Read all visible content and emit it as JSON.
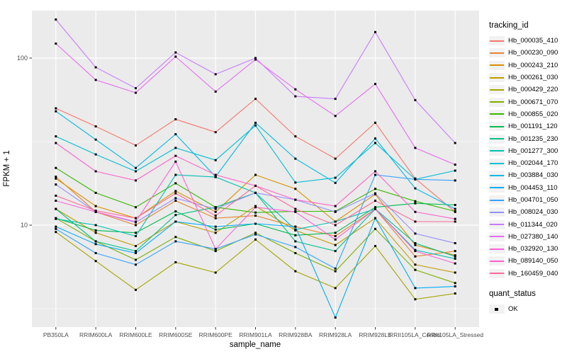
{
  "figure": {
    "panel_background": "#EBEBEB",
    "grid_color": "#FFFFFF",
    "tick_color": "#333333",
    "axis_text_color": "#4D4D4D",
    "point_color": "#000000"
  },
  "axes": {
    "x_title": "sample_name",
    "y_title": "FPKM + 1",
    "y_scale": "log10",
    "y_major_breaks": [
      10,
      100
    ],
    "y_minor_breaks": [
      3.1623,
      31.623
    ],
    "y_tick_labels": [
      "10",
      "100"
    ]
  },
  "legend": {
    "tracking_title": "tracking_id",
    "quant_title": "quant_status",
    "quant_item": "OK"
  },
  "chart_data": {
    "type": "line",
    "title": "",
    "xlabel": "sample_name",
    "ylabel": "FPKM + 1",
    "y_axis": "log10",
    "ylim": [
      2.5,
      190
    ],
    "grid": true,
    "legend_position": "right",
    "marker": "black-square",
    "quant_status_all_points": "OK",
    "categories": [
      "PB350LA",
      "RRIM600LA",
      "RRIM600LE",
      "RRIM600SE",
      "RRIM600PE",
      "RRIM901LA",
      "RRIM928BA",
      "RRIM928LA",
      "RRIM928LE",
      "RRII105LA_Control",
      "RRII105LA_Stressed"
    ],
    "series": [
      {
        "name": "Hb_000035_410",
        "color": "#F8766D",
        "values": [
          50,
          39,
          30,
          43,
          36,
          57,
          34,
          25,
          41,
          19,
          12
        ]
      },
      {
        "name": "Hb_000230_090",
        "color": "#EA8331",
        "values": [
          19.5,
          12,
          10,
          14,
          11,
          11.4,
          9.8,
          8.6,
          12.5,
          6.5,
          7
        ]
      },
      {
        "name": "Hb_000243_210",
        "color": "#D89000",
        "values": [
          19,
          13,
          11,
          16,
          12,
          20,
          16.5,
          10.5,
          15.3,
          7.6,
          6.6
        ]
      },
      {
        "name": "Hb_000261_030",
        "color": "#C09B00",
        "values": [
          12.5,
          9,
          7.5,
          10.5,
          9,
          13,
          9.3,
          7.6,
          11,
          5.8,
          5.2
        ]
      },
      {
        "name": "Hb_000429_220",
        "color": "#A3A500",
        "values": [
          9.1,
          6.1,
          4.1,
          6,
          5.2,
          8.2,
          5.3,
          4.2,
          7.5,
          3.6,
          3.9
        ]
      },
      {
        "name": "Hb_000671_070",
        "color": "#7CAE00",
        "values": [
          11,
          8,
          6.2,
          8.5,
          7,
          9,
          6.8,
          5.3,
          9.5,
          5.4,
          4.5
        ]
      },
      {
        "name": "Hb_000855_020",
        "color": "#39B600",
        "values": [
          22,
          15.6,
          12.8,
          17.8,
          12.8,
          11.9,
          12.1,
          12.1,
          16.5,
          13.9,
          12.1
        ]
      },
      {
        "name": "Hb_001191_120",
        "color": "#00BB4E",
        "values": [
          11,
          9.3,
          9,
          12.1,
          9.4,
          10.2,
          8.7,
          9,
          12.8,
          13.5,
          13.2
        ]
      },
      {
        "name": "Hb_001235_230",
        "color": "#00C087",
        "values": [
          12.5,
          8,
          7,
          11.5,
          12.8,
          15.6,
          8,
          7,
          12.5,
          7.8,
          6.5
        ]
      },
      {
        "name": "Hb_001277_300",
        "color": "#00C0B2",
        "values": [
          10.9,
          10,
          8.6,
          20,
          19.4,
          15.6,
          9.4,
          10.5,
          12.5,
          7.1,
          6.3
        ]
      },
      {
        "name": "Hb_002044_170",
        "color": "#00BFD3",
        "values": [
          34,
          26.5,
          21,
          29,
          24.5,
          39.5,
          18,
          19.2,
          31,
          18.8,
          21.2
        ]
      },
      {
        "name": "Hb_003884_030",
        "color": "#00B8E7",
        "values": [
          48,
          32.5,
          22,
          35,
          19.5,
          41,
          25,
          17.9,
          33,
          16.6,
          12.5
        ]
      },
      {
        "name": "Hb_004453_110",
        "color": "#00ACFC",
        "values": [
          9.8,
          7.7,
          6.8,
          10.5,
          9.8,
          10.2,
          9.8,
          2.8,
          11,
          4.2,
          4.3
        ]
      },
      {
        "name": "Hb_004701_050",
        "color": "#35A2FF",
        "values": [
          9.5,
          6.8,
          5.8,
          8,
          7.2,
          8.8,
          7.4,
          5.5,
          20,
          18.8,
          18.5
        ]
      },
      {
        "name": "Hb_008024_030",
        "color": "#9590FF",
        "values": [
          17.5,
          12,
          10.4,
          14.5,
          12.5,
          15.6,
          14.2,
          12,
          15.5,
          8.9,
          7.8
        ]
      },
      {
        "name": "Hb_011344_020",
        "color": "#C77CFF",
        "values": [
          170,
          88,
          66,
          108,
          80,
          100,
          59,
          57,
          143,
          56,
          31
        ]
      },
      {
        "name": "Hb_027380_140",
        "color": "#E76BF3",
        "values": [
          122,
          74,
          62,
          102,
          63,
          98,
          65,
          45,
          70,
          29,
          23
        ]
      },
      {
        "name": "Hb_032920_130",
        "color": "#FA62DB",
        "values": [
          14,
          12,
          10.5,
          24,
          7.2,
          12.8,
          12,
          8.2,
          12.5,
          7,
          5.9
        ]
      },
      {
        "name": "Hb_089140_050",
        "color": "#FF61C9",
        "values": [
          31,
          21,
          18.5,
          26,
          20,
          17.2,
          14.2,
          13,
          21,
          12,
          10.9
        ]
      },
      {
        "name": "Hb_160459_040",
        "color": "#FF6A98",
        "values": [
          15,
          12.2,
          11,
          15.5,
          11.4,
          17.2,
          12.5,
          10,
          14,
          10.5,
          10.5
        ]
      }
    ]
  }
}
